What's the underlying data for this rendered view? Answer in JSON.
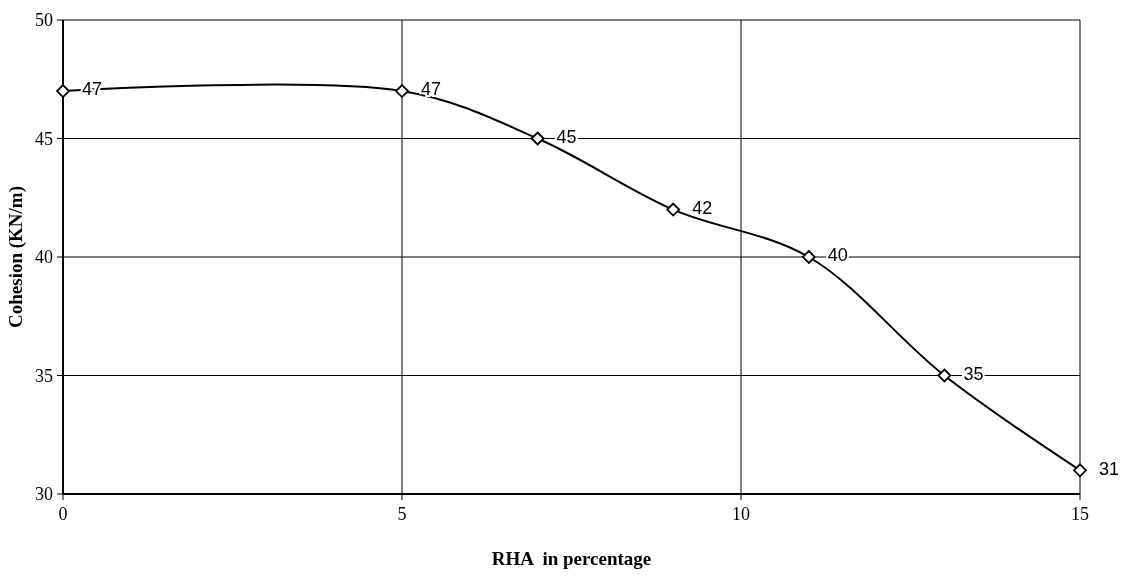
{
  "chart_data": {
    "type": "line",
    "xlabel": "RHA  in percentage",
    "ylabel": "Cohesion (KN/m)",
    "x": [
      0,
      5,
      7,
      9,
      11,
      13,
      15
    ],
    "series": [
      {
        "color": "#000000",
        "values": [
          47,
          47,
          45,
          42,
          40,
          35,
          31
        ]
      }
    ],
    "xlim": [
      0,
      15
    ],
    "xticks": [
      0,
      5,
      10,
      15
    ],
    "ylim": [
      30,
      50
    ],
    "yticks": [
      30,
      35,
      40,
      45,
      50
    ],
    "grid": true,
    "marker": "diamond",
    "line_style": "solid",
    "data_labels": true
  }
}
